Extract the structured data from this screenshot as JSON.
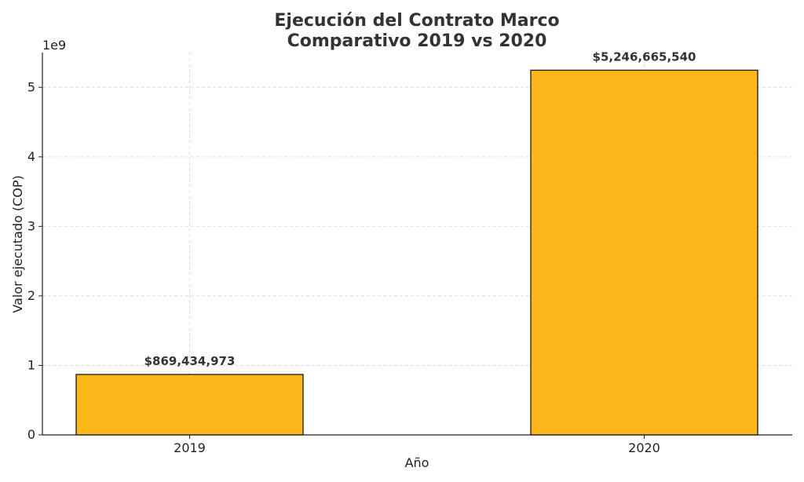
{
  "chart_data": {
    "type": "bar",
    "title_line1": "Ejecución del Contrato Marco",
    "title_line2": "Comparativo 2019 vs 2020",
    "xlabel": "Año",
    "ylabel": "Valor ejecutado (COP)",
    "y_exponent_label": "1e9",
    "categories": [
      "2019",
      "2020"
    ],
    "values": [
      869434973,
      5246665540
    ],
    "value_labels": [
      "$869,434,973",
      "$5,246,665,540"
    ],
    "y_ticks": [
      0,
      1,
      2,
      3,
      4,
      5
    ],
    "y_tick_scale": 1000000000,
    "ylim": [
      0,
      5500000000
    ],
    "grid": true,
    "bar_color": "#FDB71A",
    "bar_edge_color": "#1a1a1a"
  }
}
